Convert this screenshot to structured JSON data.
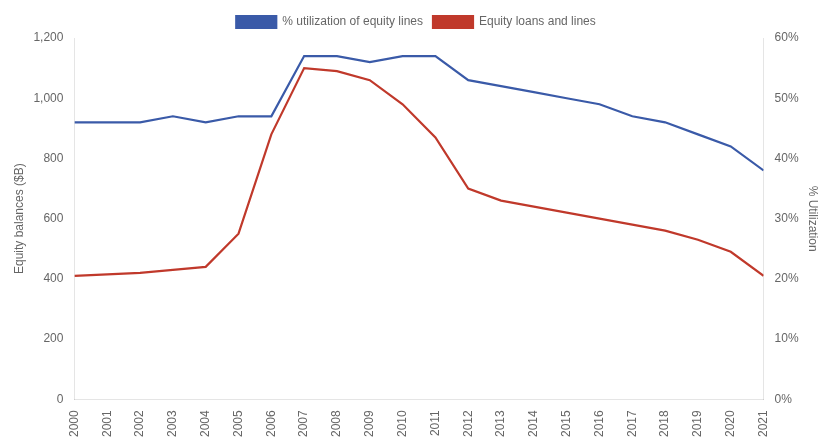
{
  "chart_data": {
    "type": "line",
    "x": [
      2000,
      2001,
      2002,
      2003,
      2004,
      2005,
      2006,
      2007,
      2008,
      2009,
      2010,
      2011,
      2012,
      2013,
      2014,
      2015,
      2016,
      2017,
      2018,
      2019,
      2020,
      2021
    ],
    "series": [
      {
        "name": "% utilization of equity lines",
        "color": "#3a5aa8",
        "axis": "y2",
        "values": [
          46,
          46,
          46,
          47,
          46,
          47,
          47,
          57,
          57,
          56,
          57,
          57,
          53,
          52,
          51,
          50,
          49,
          47,
          46,
          44,
          42,
          38
        ]
      },
      {
        "name": "Equity loans and lines",
        "color": "#c0392b",
        "values": [
          410,
          415,
          420,
          430,
          440,
          550,
          880,
          1100,
          1090,
          1060,
          980,
          870,
          700,
          660,
          640,
          620,
          600,
          580,
          560,
          530,
          490,
          410
        ]
      }
    ],
    "ylabel": "Equity balances ($B)",
    "y2label": "% Utilization",
    "xlim": [
      2000,
      2021
    ],
    "xticks": [
      2000,
      2001,
      2002,
      2003,
      2004,
      2005,
      2006,
      2007,
      2008,
      2009,
      2010,
      2011,
      2012,
      2013,
      2014,
      2015,
      2016,
      2017,
      2018,
      2019,
      2020,
      2021
    ],
    "ylim": [
      0,
      1200
    ],
    "yticks": [
      0,
      200,
      400,
      600,
      800,
      {
        "value": 1000,
        "label": "1,000"
      },
      {
        "value": 1200,
        "label": "1,200"
      }
    ],
    "y2lim": [
      0,
      60
    ],
    "y2ticks": [
      {
        "value": 0,
        "label": "0%"
      },
      {
        "value": 10,
        "label": "10%"
      },
      {
        "value": 20,
        "label": "20%"
      },
      {
        "value": 30,
        "label": "30%"
      },
      {
        "value": 40,
        "label": "40%"
      },
      {
        "value": 50,
        "label": "50%"
      },
      {
        "value": 60,
        "label": "60%"
      }
    ],
    "grid": false,
    "legend": "top"
  }
}
